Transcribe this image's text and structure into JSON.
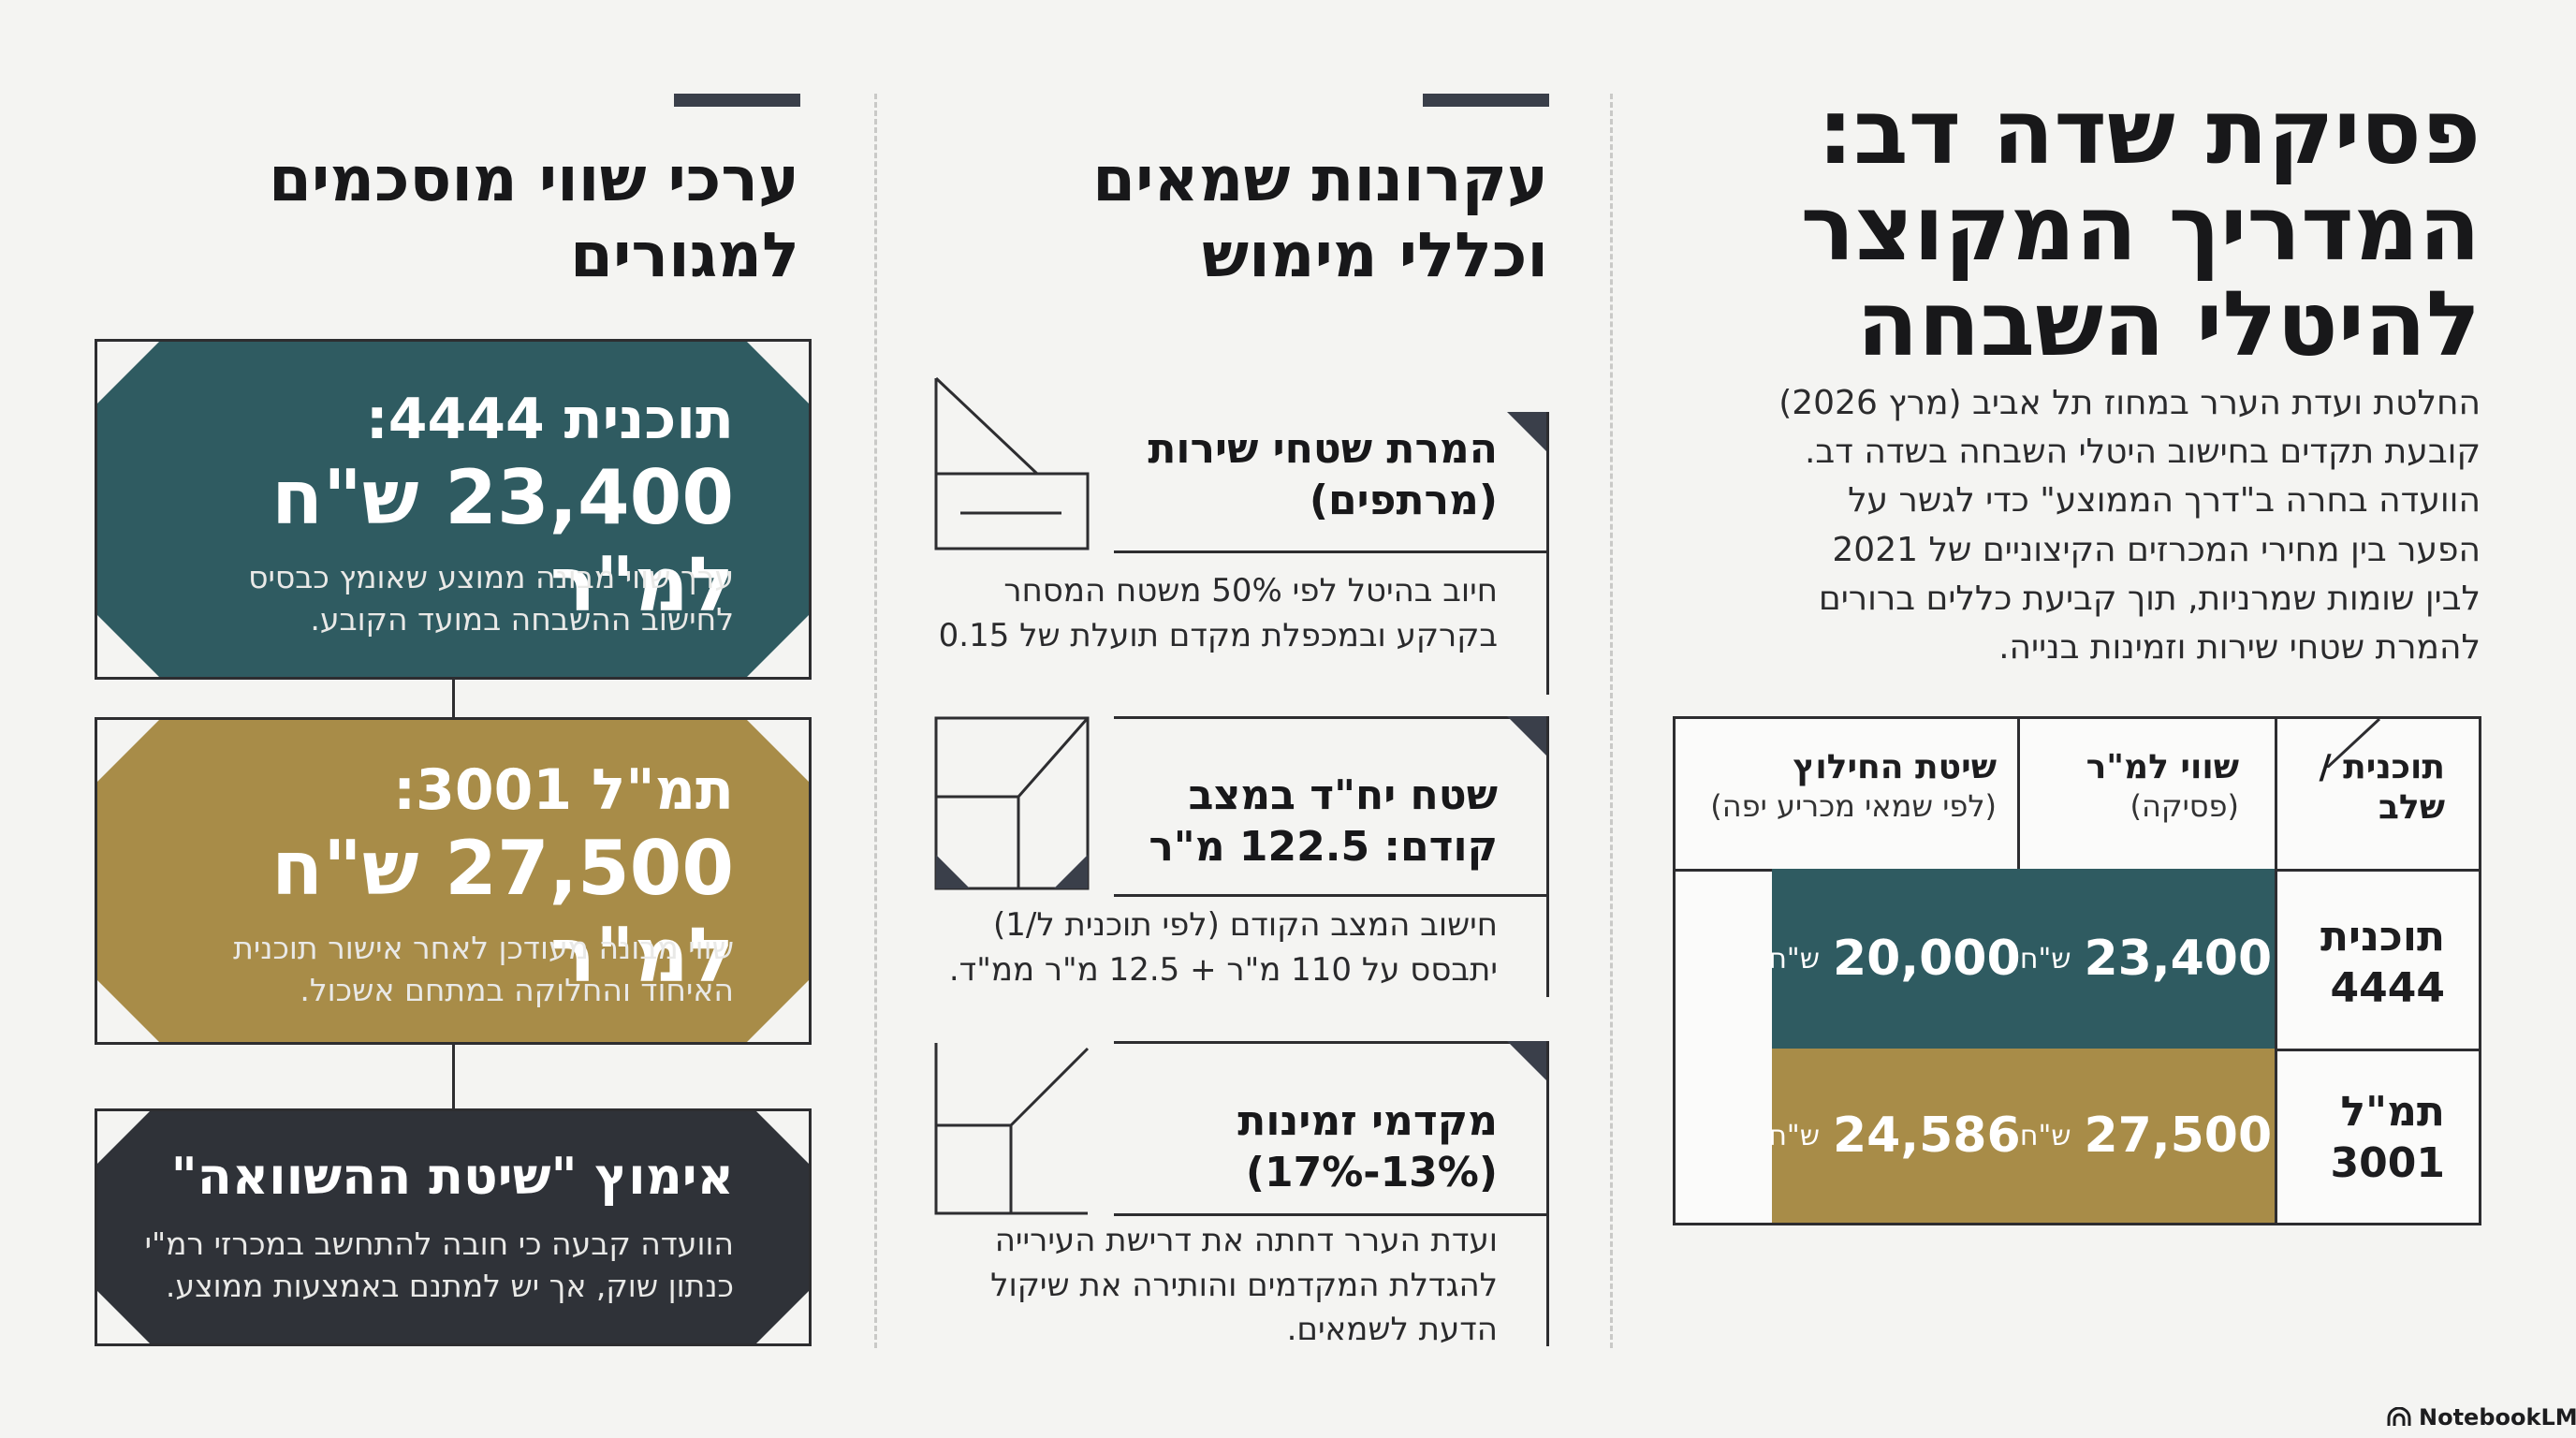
{
  "right": {
    "title_lines": [
      "פסיקת שדה דב:",
      "המדריך המקוצר",
      "להיטלי השבחה"
    ],
    "intro": "החלטת ועדת הערר במחוז תל אביב (מרץ 2026) קובעת תקדים בחישוב היטלי השבחה בשדה דב. הוועדה בחרה ב\"דרך הממוצע\" כדי לגשר על הפער בין מחירי המכרזים הקיצוניים של 2021 לבין שומות שמרניות, תוך קביעת כללים ברורים להמרת שטחי שירות וזמינות בנייה.",
    "table": {
      "col_plan": "תוכנית / שלב",
      "col_value": "שווי למ\"ר",
      "col_value_sub": "(פסיקה)",
      "col_alt": "שיטת החילוץ",
      "col_alt_sub": "(לפי שמאי מכריע יפה)",
      "currency": "ש\"ח",
      "rows": [
        {
          "plan": "תוכנית 4444",
          "value": "23,400",
          "alt": "20,000",
          "color": "#2f5b61"
        },
        {
          "plan": "תמ\"ל 3001",
          "value": "27,500",
          "alt": "24,586",
          "color": "#a88c48"
        }
      ]
    }
  },
  "middle": {
    "title": "עקרונות שמאים וכללי מימוש",
    "sections": [
      {
        "icon": "basement-diagram-icon",
        "head": "המרת שטחי שירות (מרתפים)",
        "body": "חיוב בהיטל לפי 50% משטח המסחר בקרקע ובמכפלת מקדם תועלת של 0.15"
      },
      {
        "icon": "cube-diagram-icon",
        "head": "שטח יח\"ד במצב קודם: 122.5 מ\"ר",
        "body": "חישוב המצב הקודם (לפי תוכנית ל/1) יתבסס על 110 מ\"ר + 12.5 מ\"ר ממ\"ד."
      },
      {
        "icon": "perspective-diagram-icon",
        "head": "מקדמי זמינות (13%-17%)",
        "body": "ועדת הערר דחתה את דרישת העירייה להגדלת המקדמים והותירה את שיקול הדעת לשמאים."
      }
    ]
  },
  "left": {
    "title": "ערכי שווי מוסכמים למגורים",
    "cards": [
      {
        "label": "תוכנית 4444:",
        "value": "23,400 ש\"ח למ\"ר",
        "text": "ערך שווי מבונה ממוצע שאומץ כבסיס לחישוב ההשבחה במועד הקובע.",
        "color": "#2f5b61"
      },
      {
        "label": "תמ\"ל 3001:",
        "value": "27,500 ש\"ח למ\"ר",
        "text": "שווי מבונה מעודכן לאחר אישור תוכנית האיחוד והחלוקה במתחם אשכול.",
        "color": "#a88c48"
      },
      {
        "label": "אימוץ \"שיטת ההשוואה\"",
        "text": "הוועדה קבעה כי חובה להתחשב במכרזי רמ\"י כנתון שוק, אך יש למתנם באמצעות ממוצע.",
        "color": "#2f3238"
      }
    ]
  },
  "brand": "NotebookLM"
}
